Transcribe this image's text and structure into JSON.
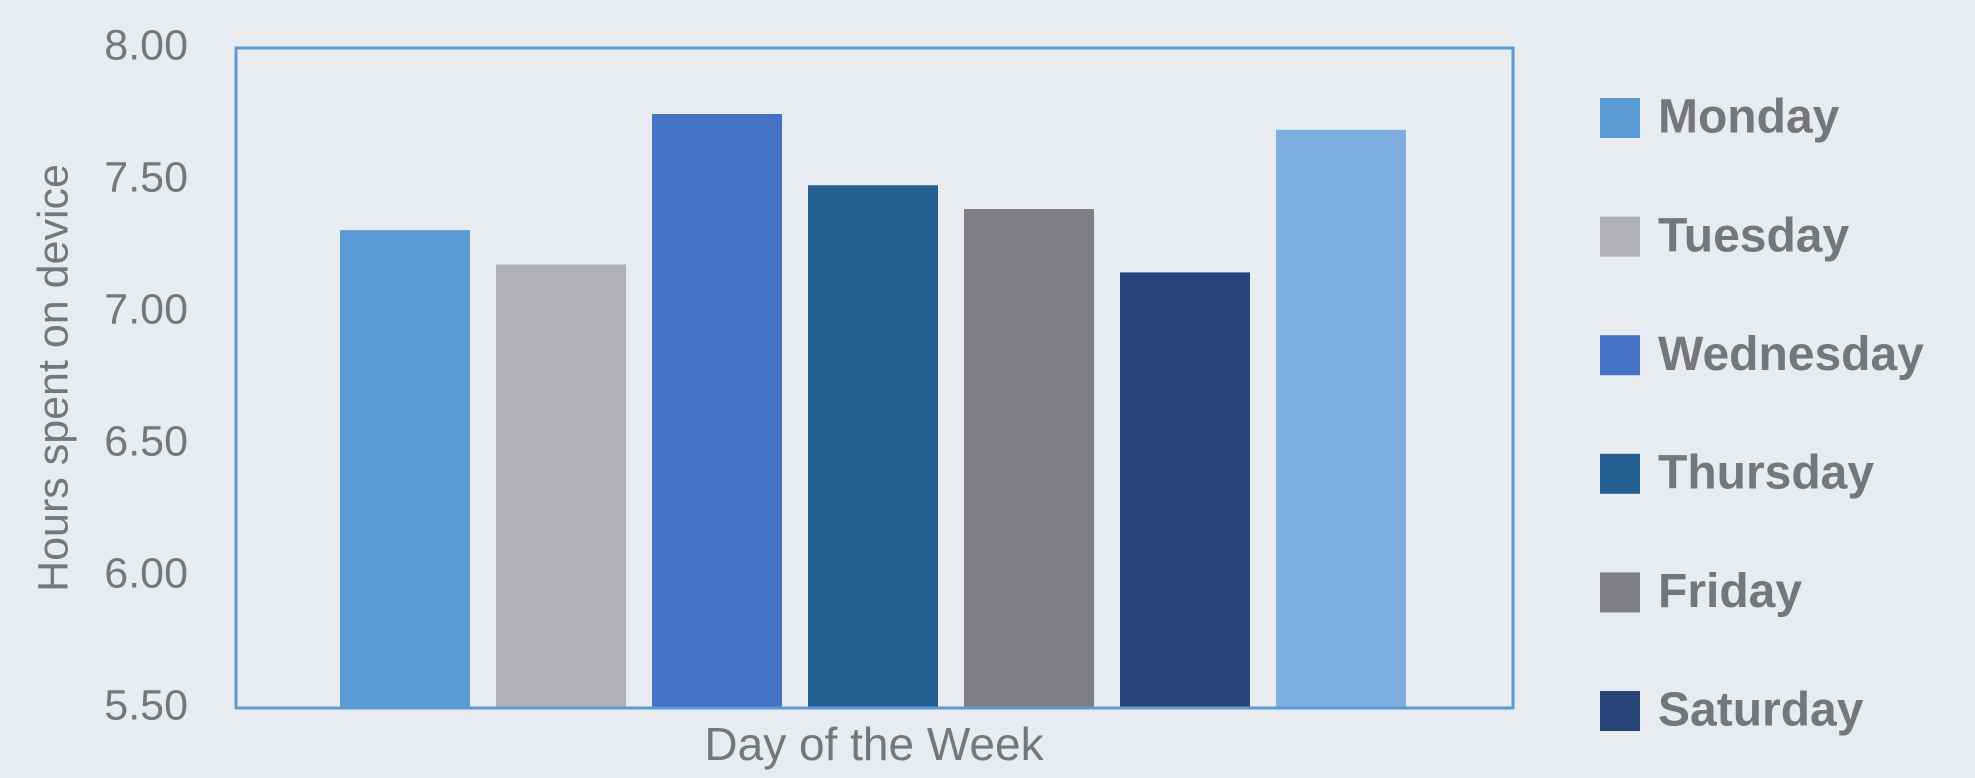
{
  "chart_data": {
    "type": "bar",
    "xlabel": "Day of the Week",
    "ylabel": "Hours spent on device",
    "series": [
      {
        "name": "Monday",
        "color": "#5b9bd5",
        "values": [
          7.31
        ]
      },
      {
        "name": "Tuesday",
        "color": "#b0b1b5",
        "values": [
          7.18
        ]
      },
      {
        "name": "Wednesday",
        "color": "#4472c4",
        "values": [
          7.75
        ]
      },
      {
        "name": "Thursday",
        "color": "#255e91",
        "values": [
          7.48
        ]
      },
      {
        "name": "Friday",
        "color": "#7e7f83",
        "values": [
          7.39
        ]
      },
      {
        "name": "Saturday",
        "color": "#264478",
        "values": [
          7.15
        ]
      },
      {
        "name": null,
        "color": "#7eaedf",
        "values": [
          7.69
        ]
      }
    ],
    "ylim": [
      5.5,
      8.0
    ],
    "yticks": [
      {
        "value": 5.5,
        "label": "5.50"
      },
      {
        "value": 6.0,
        "label": "6.00"
      },
      {
        "value": 6.5,
        "label": "6.50"
      },
      {
        "value": 7.0,
        "label": "7.00"
      },
      {
        "value": 7.5,
        "label": "7.50"
      },
      {
        "value": 8.0,
        "label": "8.00"
      }
    ],
    "legend": "right"
  }
}
